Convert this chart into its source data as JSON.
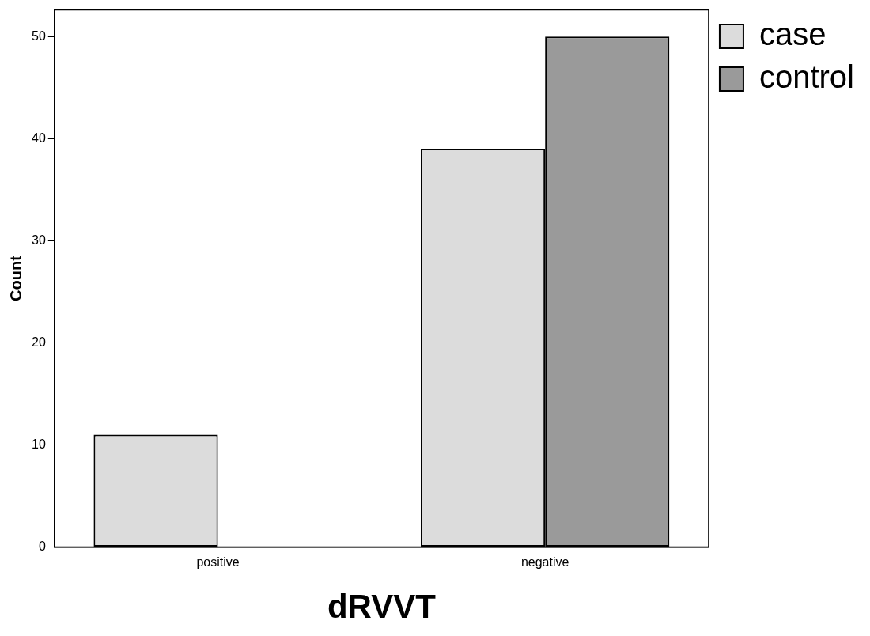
{
  "chart_data": {
    "type": "bar",
    "xlabel": "dRVVT",
    "ylabel": "Count",
    "categories": [
      "positive",
      "negative"
    ],
    "series": [
      {
        "name": "case",
        "color": "#dcdcdc",
        "values": [
          11,
          39
        ]
      },
      {
        "name": "control",
        "color": "#9a9a9a",
        "values": [
          0,
          50
        ]
      }
    ],
    "ylim": [
      0,
      52.6
    ],
    "yticks": [
      0,
      10,
      20,
      30,
      40,
      50
    ],
    "grid": false,
    "legend": "top right"
  }
}
